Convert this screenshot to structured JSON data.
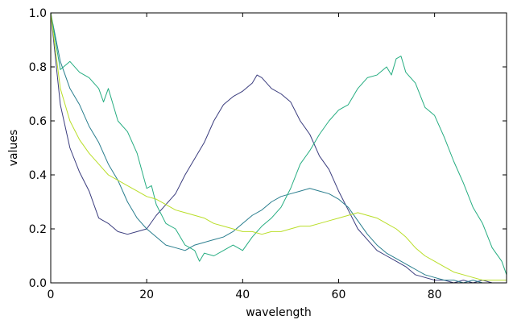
{
  "chart_data": {
    "type": "line",
    "title": "",
    "xlabel": "wavelength",
    "ylabel": "values",
    "xlim": [
      0,
      95
    ],
    "ylim": [
      0.0,
      1.0
    ],
    "xticks": [
      0,
      20,
      40,
      60,
      80
    ],
    "xtick_labels": [
      "0",
      "20",
      "40",
      "60",
      "80"
    ],
    "yticks": [
      0.0,
      0.2,
      0.4,
      0.6,
      0.8,
      1.0
    ],
    "ytick_labels": [
      "0.0",
      "0.2",
      "0.4",
      "0.6",
      "0.8",
      "1.0"
    ],
    "grid": false,
    "legend": "none",
    "series": [
      {
        "color": "#3b3d7e",
        "x": [
          0,
          2,
          4,
          6,
          8,
          10,
          12,
          14,
          16,
          18,
          20,
          22,
          24,
          26,
          28,
          30,
          32,
          34,
          36,
          38,
          40,
          42,
          43,
          44,
          46,
          48,
          50,
          52,
          54,
          56,
          58,
          60,
          62,
          64,
          66,
          68,
          70,
          72,
          74,
          76,
          78,
          80,
          82,
          84,
          86,
          88,
          90,
          92,
          95
        ],
        "y": [
          1.0,
          0.66,
          0.5,
          0.41,
          0.34,
          0.24,
          0.22,
          0.19,
          0.18,
          0.19,
          0.2,
          0.25,
          0.29,
          0.33,
          0.4,
          0.46,
          0.52,
          0.6,
          0.66,
          0.69,
          0.71,
          0.74,
          0.77,
          0.76,
          0.72,
          0.7,
          0.67,
          0.6,
          0.55,
          0.47,
          0.42,
          0.34,
          0.27,
          0.2,
          0.16,
          0.12,
          0.1,
          0.08,
          0.06,
          0.03,
          0.02,
          0.01,
          0.01,
          0.0,
          0.01,
          0.0,
          0.01,
          0.0,
          0.0
        ]
      },
      {
        "color": "#2a7e8e",
        "x": [
          0,
          2,
          4,
          6,
          8,
          10,
          12,
          14,
          16,
          18,
          20,
          22,
          24,
          26,
          28,
          30,
          32,
          34,
          36,
          38,
          40,
          42,
          44,
          46,
          48,
          50,
          52,
          54,
          56,
          58,
          60,
          62,
          64,
          66,
          68,
          70,
          72,
          74,
          76,
          78,
          80,
          82,
          84,
          86,
          88,
          90,
          92,
          95
        ],
        "y": [
          1.0,
          0.82,
          0.72,
          0.66,
          0.58,
          0.52,
          0.44,
          0.38,
          0.3,
          0.24,
          0.2,
          0.17,
          0.14,
          0.13,
          0.12,
          0.14,
          0.15,
          0.16,
          0.17,
          0.19,
          0.22,
          0.25,
          0.27,
          0.3,
          0.32,
          0.33,
          0.34,
          0.35,
          0.34,
          0.33,
          0.31,
          0.28,
          0.23,
          0.18,
          0.14,
          0.11,
          0.09,
          0.07,
          0.05,
          0.03,
          0.02,
          0.01,
          0.01,
          0.0,
          0.01,
          0.0,
          0.0,
          0.0
        ]
      },
      {
        "color": "#26ad81",
        "x": [
          0,
          2,
          4,
          6,
          8,
          10,
          11,
          12,
          14,
          16,
          18,
          20,
          21,
          22,
          24,
          26,
          28,
          30,
          31,
          32,
          34,
          36,
          38,
          40,
          42,
          44,
          46,
          48,
          50,
          52,
          54,
          56,
          58,
          60,
          62,
          64,
          66,
          68,
          70,
          71,
          72,
          73,
          74,
          76,
          78,
          80,
          82,
          84,
          86,
          88,
          90,
          92,
          94,
          95
        ],
        "y": [
          1.0,
          0.79,
          0.82,
          0.78,
          0.76,
          0.72,
          0.67,
          0.72,
          0.6,
          0.56,
          0.48,
          0.35,
          0.36,
          0.29,
          0.22,
          0.2,
          0.14,
          0.12,
          0.08,
          0.11,
          0.1,
          0.12,
          0.14,
          0.12,
          0.17,
          0.21,
          0.24,
          0.28,
          0.35,
          0.44,
          0.49,
          0.55,
          0.6,
          0.64,
          0.66,
          0.72,
          0.76,
          0.77,
          0.8,
          0.77,
          0.83,
          0.84,
          0.78,
          0.74,
          0.65,
          0.62,
          0.54,
          0.45,
          0.37,
          0.28,
          0.22,
          0.13,
          0.08,
          0.03
        ]
      },
      {
        "color": "#b9de28",
        "x": [
          0,
          2,
          4,
          6,
          8,
          10,
          12,
          14,
          16,
          18,
          20,
          22,
          24,
          26,
          28,
          30,
          32,
          34,
          36,
          38,
          40,
          42,
          44,
          46,
          48,
          50,
          52,
          54,
          56,
          58,
          60,
          62,
          64,
          66,
          68,
          70,
          72,
          74,
          76,
          78,
          80,
          82,
          84,
          86,
          88,
          90,
          92,
          95
        ],
        "y": [
          1.0,
          0.72,
          0.6,
          0.53,
          0.48,
          0.44,
          0.4,
          0.38,
          0.36,
          0.34,
          0.32,
          0.31,
          0.29,
          0.27,
          0.26,
          0.25,
          0.24,
          0.22,
          0.21,
          0.2,
          0.19,
          0.19,
          0.18,
          0.19,
          0.19,
          0.2,
          0.21,
          0.21,
          0.22,
          0.23,
          0.24,
          0.25,
          0.26,
          0.25,
          0.24,
          0.22,
          0.2,
          0.17,
          0.13,
          0.1,
          0.08,
          0.06,
          0.04,
          0.03,
          0.02,
          0.01,
          0.01,
          0.01
        ]
      }
    ]
  }
}
